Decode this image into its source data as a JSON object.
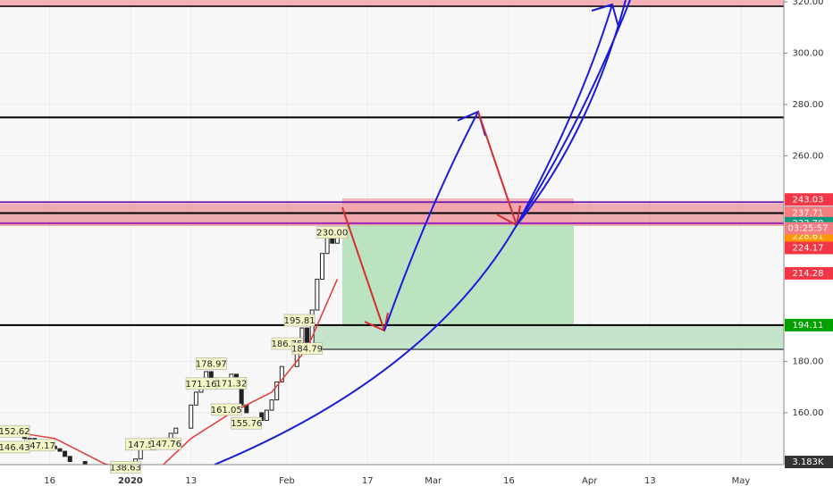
{
  "chart_data": {
    "type": "candlestick",
    "xlim": [
      -25.86,
      129.5
    ],
    "ylim": [
      139.8,
      320.7
    ],
    "yticks": [
      {
        "value": 160,
        "label": "160.00"
      },
      {
        "value": 180,
        "label": "180.00"
      },
      {
        "value": 260,
        "label": "260.00"
      },
      {
        "value": 280,
        "label": "280.00"
      },
      {
        "value": 300,
        "label": "300.00"
      },
      {
        "value": 320,
        "label": "320.00"
      }
    ],
    "xticks": [
      {
        "value": -16,
        "label": "16"
      },
      {
        "value": 0,
        "label": "2020"
      },
      {
        "value": 12,
        "label": "13"
      },
      {
        "value": 31,
        "label": "Feb"
      },
      {
        "value": 47,
        "label": "17"
      },
      {
        "value": 60,
        "label": "Mar"
      },
      {
        "value": 75,
        "label": "16"
      },
      {
        "value": 91,
        "label": "Apr"
      },
      {
        "value": 103,
        "label": "13"
      },
      {
        "value": 121,
        "label": "May"
      }
    ],
    "x": [
      -23,
      -22,
      -21,
      -20,
      -19,
      -16,
      -15,
      -14,
      -13,
      -12,
      -9,
      -8,
      -6,
      -5,
      -2,
      -1,
      1,
      2,
      5,
      6,
      7,
      8,
      9,
      12,
      13,
      14,
      15,
      16,
      20,
      21,
      22,
      23,
      26,
      27,
      28,
      29,
      30,
      33,
      34,
      35,
      36,
      37,
      38,
      39,
      40,
      41
    ],
    "closes": [
      151,
      152,
      150,
      150,
      148,
      147,
      146,
      145,
      143,
      141,
      139,
      138,
      136,
      135,
      136,
      134,
      142,
      146,
      148,
      147,
      150,
      152,
      154,
      163,
      168,
      171,
      176,
      171,
      175,
      170,
      163,
      160,
      157,
      161,
      165,
      172,
      178,
      187,
      193,
      186,
      200,
      212,
      222,
      229,
      226,
      228
    ],
    "ma": {
      "x": [
        -25,
        -15,
        -5,
        5,
        12,
        20,
        28,
        35,
        41
      ],
      "values": [
        153,
        150,
        140,
        137,
        150,
        160,
        168,
        185,
        212
      ]
    },
    "annotations": [
      {
        "x": 40,
        "value": 230,
        "label": "230.00"
      },
      {
        "x": 33.5,
        "value": 195.81,
        "label": "195.81"
      },
      {
        "x": 31,
        "value": 186.75,
        "label": "186.75"
      },
      {
        "x": 35,
        "value": 184.79,
        "label": "184.79"
      },
      {
        "x": 16,
        "value": 178.97,
        "label": "178.97"
      },
      {
        "x": 14,
        "value": 171.16,
        "label": "171.16"
      },
      {
        "x": 20,
        "value": 171.32,
        "label": "171.32"
      },
      {
        "x": 19,
        "value": 161.05,
        "label": "161.05"
      },
      {
        "x": 23,
        "value": 155.76,
        "label": "155.76"
      },
      {
        "x": -23,
        "value": 152.62,
        "label": "152.62"
      },
      {
        "x": -18,
        "value": 147.17,
        "label": "147.17"
      },
      {
        "x": -23,
        "value": 146.43,
        "label": "146.43"
      },
      {
        "x": 2,
        "value": 147.5,
        "label": "147.5"
      },
      {
        "x": 7,
        "value": 147.76,
        "label": "147.76"
      },
      {
        "x": -1,
        "value": 138.63,
        "label": "138.63"
      }
    ],
    "levels": [
      {
        "value": 275,
        "color": "#000000"
      },
      {
        "value": 242,
        "color": "#7b1fa2"
      },
      {
        "value": 237.71,
        "color": "#000000"
      },
      {
        "value": 233.78,
        "color": "#9c27b0"
      },
      {
        "value": 194.11,
        "color": "#000000"
      }
    ],
    "price_tags": [
      {
        "value": 243.03,
        "label": "243.03",
        "color": "#f23645"
      },
      {
        "value": 237.81,
        "label": "237.81",
        "color": "#555555"
      },
      {
        "value": 237.71,
        "label": "237.71",
        "color": "#f77c80"
      },
      {
        "value": 233.78,
        "label": "233.78",
        "color": "#089981"
      },
      {
        "value": 228.61,
        "label": "228.61",
        "color": "#ff9800"
      },
      {
        "value": 224.17,
        "label": "224.17",
        "color": "#f23645"
      },
      {
        "value": 214.28,
        "label": "214.28",
        "color": "#f23645"
      },
      {
        "value": 194.11,
        "label": "194.11",
        "color": "#00a000"
      }
    ],
    "countdown": "03:25:57",
    "volume_label": "3.183K"
  }
}
